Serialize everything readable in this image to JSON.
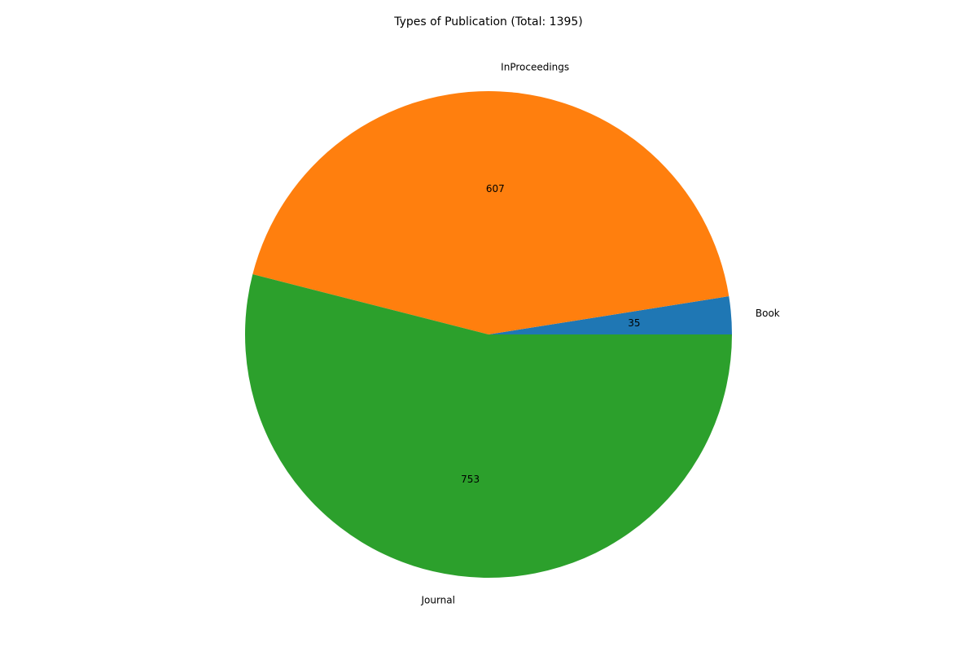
{
  "chart_data": {
    "type": "pie",
    "title": "Types of Publication (Total: 1395)",
    "categories": [
      "Book",
      "InProceedings",
      "Journal"
    ],
    "values": [
      35,
      607,
      753
    ],
    "colors": [
      "#1f77b4",
      "#ff7f0e",
      "#2ca02c"
    ],
    "start_angle_deg": 0,
    "direction": "counterclockwise",
    "legend": "none",
    "grid": false
  }
}
